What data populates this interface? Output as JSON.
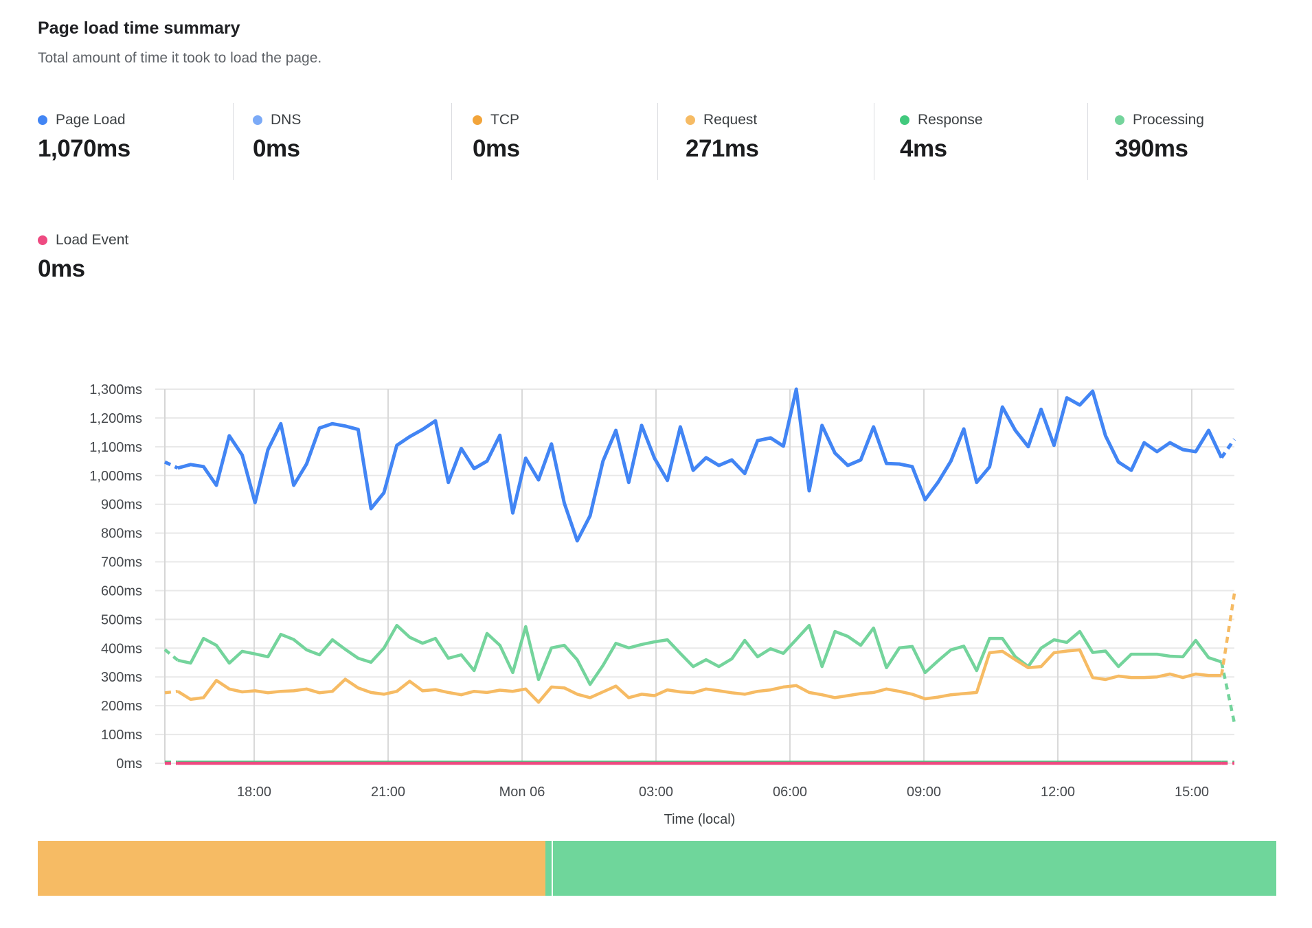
{
  "header": {
    "title": "Page load time summary",
    "subtitle": "Total amount of time it took to load the page."
  },
  "metrics": [
    {
      "id": "page_load",
      "label": "Page Load",
      "value": "1,070ms",
      "color": "#4285f4"
    },
    {
      "id": "dns",
      "label": "DNS",
      "value": "0ms",
      "color": "#7baaf7"
    },
    {
      "id": "tcp",
      "label": "TCP",
      "value": "0ms",
      "color": "#f2a43a"
    },
    {
      "id": "request",
      "label": "Request",
      "value": "271ms",
      "color": "#f6bb64"
    },
    {
      "id": "response",
      "label": "Response",
      "value": "4ms",
      "color": "#41c97d"
    },
    {
      "id": "processing",
      "label": "Processing",
      "value": "390ms",
      "color": "#74d49c"
    },
    {
      "id": "load_event",
      "label": "Load Event",
      "value": "0ms",
      "color": "#ee4a81"
    }
  ],
  "chart_data": {
    "type": "line",
    "title": "Page load time summary",
    "xlabel": "Time (local)",
    "ylabel": "",
    "y_unit": "ms",
    "ylim": [
      0,
      1300
    ],
    "grid": true,
    "legend_position": "top",
    "edge_segments_dashed": true,
    "x_tick_labels": [
      "18:00",
      "21:00",
      "Mon 06",
      "03:00",
      "06:00",
      "09:00",
      "12:00",
      "15:00"
    ],
    "y_tick_labels": [
      "1,300ms",
      "1,200ms",
      "1,100ms",
      "1,000ms",
      "900ms",
      "800ms",
      "700ms",
      "600ms",
      "500ms",
      "400ms",
      "300ms",
      "200ms",
      "100ms",
      "0ms"
    ],
    "series": [
      {
        "name": "DNS",
        "color": "#7baaf7",
        "values": [
          0,
          0,
          0,
          0,
          0,
          0,
          0,
          0,
          0,
          0,
          0,
          0,
          0,
          0,
          0,
          0,
          0,
          0,
          0,
          0,
          0,
          0,
          0,
          0,
          0,
          0,
          0,
          0,
          0,
          0,
          0,
          0,
          0,
          0,
          0,
          0,
          0,
          0,
          0,
          0,
          0,
          0,
          0,
          0,
          0,
          0,
          0,
          0,
          0,
          0,
          0,
          0,
          0,
          0,
          0,
          0,
          0,
          0,
          0,
          0,
          0,
          0,
          0,
          0,
          0,
          0,
          0,
          0,
          0,
          0,
          0,
          0,
          0,
          0,
          0,
          0,
          0,
          0,
          0,
          0,
          0,
          0,
          0,
          0
        ]
      },
      {
        "name": "TCP",
        "color": "#f2a43a",
        "values": [
          0,
          0,
          0,
          0,
          0,
          0,
          0,
          0,
          0,
          0,
          0,
          0,
          0,
          0,
          0,
          0,
          0,
          0,
          0,
          0,
          0,
          0,
          0,
          0,
          0,
          0,
          0,
          0,
          0,
          0,
          0,
          0,
          0,
          0,
          0,
          0,
          0,
          0,
          0,
          0,
          0,
          0,
          0,
          0,
          0,
          0,
          0,
          0,
          0,
          0,
          0,
          0,
          0,
          0,
          0,
          0,
          0,
          0,
          0,
          0,
          0,
          0,
          0,
          0,
          0,
          0,
          0,
          0,
          0,
          0,
          0,
          0,
          0,
          0,
          0,
          0,
          0,
          0,
          0,
          0,
          0,
          0,
          0,
          0
        ]
      },
      {
        "name": "Processing",
        "color": "#74d49c",
        "values": [
          395,
          358,
          348,
          434,
          410,
          348,
          389,
          380,
          370,
          448,
          430,
          394,
          377,
          429,
          396,
          365,
          351,
          400,
          479,
          438,
          417,
          434,
          365,
          377,
          322,
          451,
          410,
          315,
          475,
          291,
          401,
          410,
          360,
          274,
          340,
          417,
          401,
          413,
          422,
          429,
          382,
          336,
          360,
          336,
          363,
          427,
          370,
          398,
          382,
          430,
          479,
          336,
          458,
          441,
          410,
          470,
          332,
          401,
          406,
          315,
          356,
          394,
          407,
          322,
          434,
          434,
          370,
          336,
          400,
          429,
          420,
          458,
          385,
          390,
          336,
          379,
          379,
          379,
          372,
          370,
          427,
          367,
          352,
          140
        ]
      },
      {
        "name": "Request",
        "color": "#f6bb64",
        "values": [
          245,
          250,
          222,
          228,
          288,
          258,
          248,
          252,
          245,
          250,
          252,
          258,
          245,
          250,
          292,
          262,
          246,
          240,
          250,
          285,
          252,
          256,
          246,
          238,
          250,
          246,
          254,
          250,
          258,
          212,
          265,
          262,
          240,
          228,
          248,
          268,
          228,
          240,
          235,
          255,
          248,
          245,
          258,
          252,
          245,
          240,
          250,
          255,
          265,
          270,
          246,
          238,
          228,
          235,
          242,
          246,
          258,
          250,
          240,
          224,
          230,
          238,
          242,
          246,
          384,
          389,
          360,
          332,
          336,
          384,
          390,
          394,
          298,
          291,
          303,
          298,
          298,
          300,
          310,
          298,
          310,
          305,
          305,
          590
        ]
      },
      {
        "name": "Response",
        "color": "#41c97d",
        "values": [
          4,
          4,
          4,
          4,
          4,
          4,
          4,
          4,
          4,
          4,
          4,
          4,
          4,
          4,
          4,
          4,
          4,
          4,
          4,
          4,
          4,
          4,
          4,
          4,
          4,
          4,
          4,
          4,
          4,
          4,
          4,
          4,
          4,
          4,
          4,
          4,
          4,
          4,
          4,
          4,
          4,
          4,
          4,
          4,
          4,
          4,
          4,
          4,
          4,
          4,
          4,
          4,
          4,
          4,
          4,
          4,
          4,
          4,
          4,
          4,
          4,
          4,
          4,
          4,
          4,
          4,
          4,
          4,
          4,
          4,
          4,
          4,
          4,
          4,
          4,
          4,
          4,
          4,
          4,
          4,
          4,
          4,
          4,
          4
        ]
      },
      {
        "name": "Load Event",
        "color": "#ee4a81",
        "values": [
          0,
          0,
          0,
          0,
          0,
          0,
          0,
          0,
          0,
          0,
          0,
          0,
          0,
          0,
          0,
          0,
          0,
          0,
          0,
          0,
          0,
          0,
          0,
          0,
          0,
          0,
          0,
          0,
          0,
          0,
          0,
          0,
          0,
          0,
          0,
          0,
          0,
          0,
          0,
          0,
          0,
          0,
          0,
          0,
          0,
          0,
          0,
          0,
          0,
          0,
          0,
          0,
          0,
          0,
          0,
          0,
          0,
          0,
          0,
          0,
          0,
          0,
          0,
          0,
          0,
          0,
          0,
          0,
          0,
          0,
          0,
          0,
          0,
          0,
          0,
          0,
          0,
          0,
          0,
          0,
          0,
          0,
          0,
          0
        ]
      },
      {
        "name": "Page Load",
        "color": "#4285f4",
        "values": [
          1047,
          1026,
          1038,
          1031,
          966,
          1138,
          1071,
          906,
          1090,
          1180,
          966,
          1040,
          1165,
          1180,
          1172,
          1160,
          885,
          940,
          1105,
          1135,
          1160,
          1190,
          976,
          1094,
          1024,
          1050,
          1140,
          870,
          1060,
          985,
          1110,
          904,
          773,
          860,
          1050,
          1157,
          976,
          1174,
          1060,
          983,
          1169,
          1018,
          1062,
          1035,
          1054,
          1007,
          1121,
          1131,
          1102,
          1300,
          947,
          1174,
          1078,
          1035,
          1054,
          1169,
          1042,
          1040,
          1031,
          916,
          976,
          1050,
          1162,
          976,
          1030,
          1238,
          1157,
          1100,
          1230,
          1105,
          1270,
          1245,
          1293,
          1138,
          1047,
          1018,
          1114,
          1083,
          1114,
          1090,
          1083,
          1157,
          1062,
          1126
        ]
      }
    ]
  },
  "timeline_bar": {
    "segments": [
      {
        "label": "request",
        "color": "#f6bb64",
        "pct": 41.0
      },
      {
        "label": "processing",
        "color": "#6fd69b",
        "pct": 0.5
      },
      {
        "label": "gap",
        "color": "#ffffff",
        "pct": 0.12
      },
      {
        "label": "processing",
        "color": "#6fd69b",
        "pct": 58.38
      }
    ]
  }
}
